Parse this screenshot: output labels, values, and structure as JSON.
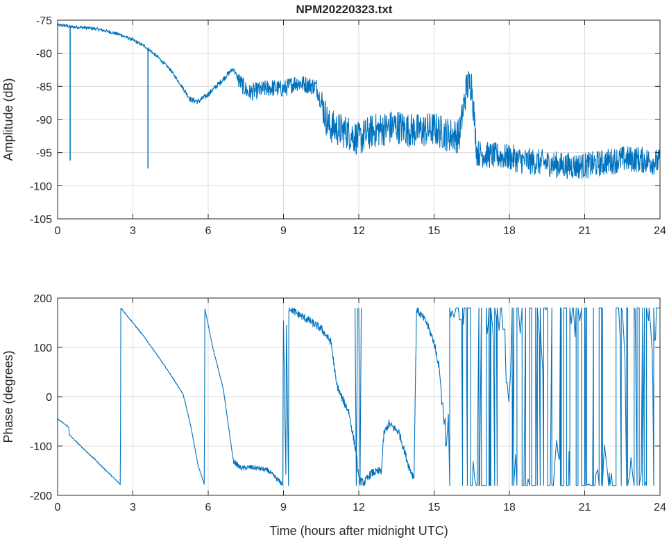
{
  "figure_title": "NPM20220323.txt",
  "chart_data": [
    {
      "type": "line",
      "title": "NPM20220323.txt",
      "xlabel": "",
      "ylabel": "Amplitude (dB)",
      "xlim": [
        0,
        24
      ],
      "ylim": [
        -105,
        -75
      ],
      "xticks": [
        0,
        3,
        6,
        9,
        12,
        15,
        18,
        21,
        24
      ],
      "yticks": [
        -105,
        -100,
        -95,
        -90,
        -85,
        -80,
        -75
      ],
      "grid": true,
      "series": [
        {
          "color": "#0072BD",
          "x": [
            0,
            0.3,
            0.5,
            1.0,
            1.5,
            2.0,
            2.5,
            3.0,
            3.5,
            4.0,
            4.5,
            5.0,
            5.3,
            5.6,
            6.0,
            6.5,
            7.0,
            7.2,
            7.6,
            8.0,
            8.5,
            9.0,
            9.5,
            10.0,
            10.3,
            10.6,
            10.8,
            11.2,
            11.6,
            12.0,
            12.5,
            13.0,
            13.5,
            14.0,
            14.5,
            15.0,
            15.5,
            16.0,
            16.3,
            16.5,
            16.7,
            17.0,
            17.5,
            18.0,
            18.5,
            19.0,
            19.5,
            20.0,
            20.5,
            21.0,
            21.5,
            22.0,
            22.5,
            23.0,
            23.5,
            24.0
          ],
          "values": [
            -75.8,
            -75.8,
            -76.0,
            -76.1,
            -76.3,
            -76.7,
            -77.2,
            -78.0,
            -79.0,
            -80.6,
            -82.5,
            -85.3,
            -87.0,
            -87.3,
            -86.2,
            -84.3,
            -82.3,
            -84.0,
            -86.0,
            -85.6,
            -85.2,
            -85.4,
            -84.4,
            -84.8,
            -85.0,
            -88.5,
            -91.0,
            -91.5,
            -92.0,
            -93.0,
            -91.8,
            -91.4,
            -91.0,
            -91.6,
            -91.7,
            -91.4,
            -92.2,
            -92.5,
            -85.0,
            -84.6,
            -95.0,
            -95.3,
            -95.5,
            -95.7,
            -96.2,
            -96.4,
            -96.6,
            -96.9,
            -97.0,
            -97.0,
            -96.7,
            -96.3,
            -96.0,
            -96.0,
            -96.2,
            -96.5
          ]
        }
      ],
      "annotations": [
        {
          "x": 0.5,
          "min": -96.2
        },
        {
          "x": 3.6,
          "min": -97.4
        }
      ]
    },
    {
      "type": "line",
      "title": "",
      "xlabel": "Time (hours after midnight UTC)",
      "ylabel": "Phase (degrees)",
      "xlim": [
        0,
        24
      ],
      "ylim": [
        -200,
        200
      ],
      "xticks": [
        0,
        3,
        6,
        9,
        12,
        15,
        18,
        21,
        24
      ],
      "yticks": [
        -200,
        -100,
        0,
        100,
        200
      ],
      "grid": true,
      "series": [
        {
          "color": "#0072BD",
          "x": [
            0,
            0.45,
            0.46,
            1.0,
            1.5,
            2.0,
            2.5,
            2.52,
            3.0,
            3.5,
            4.0,
            4.5,
            5.0,
            5.3,
            5.6,
            5.85,
            5.86,
            6.2,
            6.6,
            7.0,
            7.3,
            7.7,
            8.0,
            8.4,
            8.8,
            8.98,
            8.99,
            9.1,
            9.11,
            9.2,
            9.21,
            9.3,
            9.5,
            10.0,
            10.5,
            10.9,
            11.1,
            11.3,
            11.6,
            11.9,
            12.0,
            12.2,
            12.5,
            12.9,
            13.0,
            13.2,
            13.6,
            14.0,
            14.2,
            14.3,
            14.7,
            15.0,
            15.2
          ],
          "values": [
            -45,
            -62,
            -77,
            -104,
            -128,
            -153,
            -178,
            180,
            150,
            118,
            82,
            45,
            5,
            -58,
            -140,
            -178,
            180,
            96,
            16,
            -130,
            -145,
            -143,
            -145,
            -150,
            -170,
            -178,
            180,
            -180,
            180,
            -180,
            180,
            178,
            170,
            155,
            138,
            110,
            28,
            0,
            -30,
            -115,
            -168,
            -175,
            -155,
            -150,
            -75,
            -55,
            -72,
            -142,
            -165,
            178,
            150,
            110,
            60
          ]
        }
      ],
      "wrap_traces": [
        {
          "x": [
            11.85,
            11.9,
            11.95
          ],
          "values": [
            180,
            -180,
            180
          ]
        },
        {
          "x": [
            12.0,
            12.05,
            12.1
          ],
          "values": [
            180,
            -180,
            180
          ]
        }
      ]
    }
  ]
}
